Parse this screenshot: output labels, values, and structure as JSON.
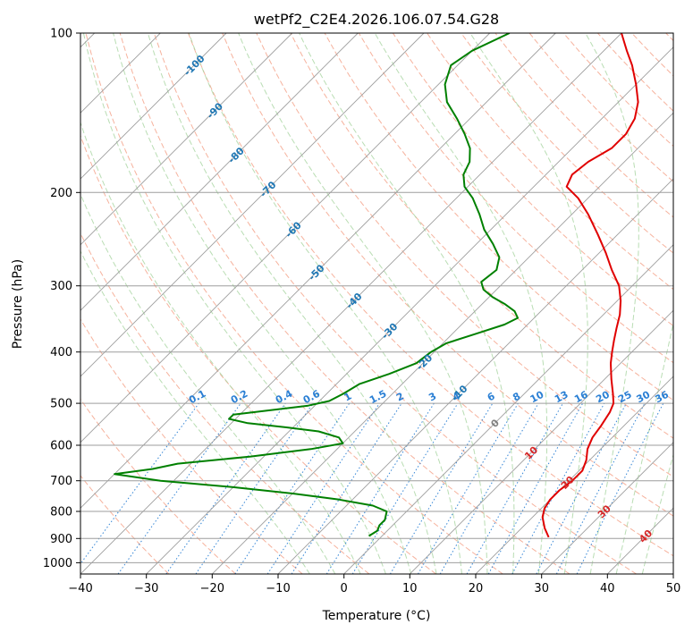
{
  "chart_data": {
    "type": "line",
    "subtype": "skew-T log-P diagram",
    "title": "wetPf2_C2E4.2026.106.07.54.G28",
    "xlabel": "Temperature (°C)",
    "ylabel": "Pressure (hPa)",
    "xlim": [
      -40,
      50
    ],
    "ylim": [
      1050,
      100
    ],
    "x_ticks": [
      -40,
      -30,
      -20,
      -10,
      0,
      10,
      20,
      30,
      40,
      50
    ],
    "x_tick_labels": [
      "−40",
      "−30",
      "−20",
      "−10",
      "0",
      "10",
      "20",
      "30",
      "40",
      "50"
    ],
    "y_ticks": [
      100,
      200,
      300,
      400,
      500,
      600,
      700,
      800,
      900,
      1000
    ],
    "y_tick_labels": [
      "100",
      "200",
      "300",
      "400",
      "500",
      "600",
      "700",
      "800",
      "900",
      "1000"
    ],
    "grid": true,
    "skew_isotherm_labels": [
      {
        "t": -100,
        "p": 115,
        "text": "-100"
      },
      {
        "t": -90,
        "p": 140,
        "text": "-90"
      },
      {
        "t": -80,
        "p": 170,
        "text": "-80"
      },
      {
        "t": -70,
        "p": 197,
        "text": "-70"
      },
      {
        "t": -60,
        "p": 235,
        "text": "-60"
      },
      {
        "t": -50,
        "p": 283,
        "text": "-50"
      },
      {
        "t": -40,
        "p": 320,
        "text": "-40"
      },
      {
        "t": -30,
        "p": 365,
        "text": "-30"
      },
      {
        "t": -20,
        "p": 418,
        "text": "-20"
      },
      {
        "t": -10,
        "p": 478,
        "text": "-10"
      },
      {
        "t": 0,
        "p": 545,
        "text": "0"
      },
      {
        "t": 10,
        "p": 620,
        "text": "10"
      },
      {
        "t": 20,
        "p": 705,
        "text": "20"
      },
      {
        "t": 30,
        "p": 800,
        "text": "30"
      },
      {
        "t": 40,
        "p": 890,
        "text": "40"
      }
    ],
    "mixing_ratio_labels": [
      "0.1",
      "0.2",
      "0.4",
      "0.6",
      "1",
      "1.5",
      "2",
      "3",
      "4",
      "6",
      "8",
      "10",
      "13",
      "16",
      "20",
      "25",
      "30",
      "36"
    ],
    "series": [
      {
        "name": "Temperature",
        "color": "#e00000",
        "points": [
          {
            "p": 895,
            "t": 25.5
          },
          {
            "p": 860,
            "t": 23.5
          },
          {
            "p": 820,
            "t": 21.5
          },
          {
            "p": 790,
            "t": 20.5
          },
          {
            "p": 760,
            "t": 20.0
          },
          {
            "p": 730,
            "t": 20.0
          },
          {
            "p": 700,
            "t": 20.5
          },
          {
            "p": 670,
            "t": 20.5
          },
          {
            "p": 640,
            "t": 19.5
          },
          {
            "p": 610,
            "t": 18.0
          },
          {
            "p": 580,
            "t": 17.0
          },
          {
            "p": 550,
            "t": 16.5
          },
          {
            "p": 520,
            "t": 15.8
          },
          {
            "p": 500,
            "t": 15.0
          },
          {
            "p": 480,
            "t": 13.5
          },
          {
            "p": 450,
            "t": 11.0
          },
          {
            "p": 420,
            "t": 8.5
          },
          {
            "p": 400,
            "t": 7.0
          },
          {
            "p": 380,
            "t": 5.5
          },
          {
            "p": 360,
            "t": 4.0
          },
          {
            "p": 340,
            "t": 2.5
          },
          {
            "p": 320,
            "t": 0.5
          },
          {
            "p": 300,
            "t": -2.0
          },
          {
            "p": 280,
            "t": -5.5
          },
          {
            "p": 260,
            "t": -9.0
          },
          {
            "p": 240,
            "t": -13.0
          },
          {
            "p": 220,
            "t": -17.5
          },
          {
            "p": 205,
            "t": -21.5
          },
          {
            "p": 195,
            "t": -25.0
          },
          {
            "p": 185,
            "t": -26.0
          },
          {
            "p": 175,
            "t": -25.5
          },
          {
            "p": 165,
            "t": -24.0
          },
          {
            "p": 155,
            "t": -24.0
          },
          {
            "p": 145,
            "t": -25.0
          },
          {
            "p": 135,
            "t": -27.0
          },
          {
            "p": 125,
            "t": -30.0
          },
          {
            "p": 115,
            "t": -33.5
          },
          {
            "p": 108,
            "t": -36.5
          },
          {
            "p": 100,
            "t": -40.0
          }
        ]
      },
      {
        "name": "Dew Point",
        "color": "#008000",
        "points": [
          {
            "p": 890,
            "t": -2.0
          },
          {
            "p": 870,
            "t": -1.5
          },
          {
            "p": 850,
            "t": -2.0
          },
          {
            "p": 830,
            "t": -2.0
          },
          {
            "p": 800,
            "t": -3.0
          },
          {
            "p": 780,
            "t": -6.0
          },
          {
            "p": 760,
            "t": -12.0
          },
          {
            "p": 740,
            "t": -20.0
          },
          {
            "p": 720,
            "t": -30.0
          },
          {
            "p": 700,
            "t": -42.0
          },
          {
            "p": 680,
            "t": -50.0
          },
          {
            "p": 665,
            "t": -45.0
          },
          {
            "p": 650,
            "t": -42.0
          },
          {
            "p": 630,
            "t": -32.0
          },
          {
            "p": 610,
            "t": -24.0
          },
          {
            "p": 595,
            "t": -20.0
          },
          {
            "p": 580,
            "t": -21.5
          },
          {
            "p": 565,
            "t": -25.5
          },
          {
            "p": 555,
            "t": -31.0
          },
          {
            "p": 545,
            "t": -37.5
          },
          {
            "p": 535,
            "t": -41.0
          },
          {
            "p": 525,
            "t": -41.0
          },
          {
            "p": 515,
            "t": -36.0
          },
          {
            "p": 505,
            "t": -31.0
          },
          {
            "p": 495,
            "t": -28.5
          },
          {
            "p": 480,
            "t": -27.5
          },
          {
            "p": 460,
            "t": -26.5
          },
          {
            "p": 440,
            "t": -23.5
          },
          {
            "p": 420,
            "t": -21.0
          },
          {
            "p": 400,
            "t": -20.5
          },
          {
            "p": 385,
            "t": -19.5
          },
          {
            "p": 370,
            "t": -16.5
          },
          {
            "p": 355,
            "t": -13.5
          },
          {
            "p": 345,
            "t": -12.5
          },
          {
            "p": 335,
            "t": -14.0
          },
          {
            "p": 325,
            "t": -16.5
          },
          {
            "p": 315,
            "t": -19.5
          },
          {
            "p": 305,
            "t": -22.0
          },
          {
            "p": 295,
            "t": -23.5
          },
          {
            "p": 280,
            "t": -23.0
          },
          {
            "p": 265,
            "t": -24.5
          },
          {
            "p": 250,
            "t": -27.5
          },
          {
            "p": 235,
            "t": -31.0
          },
          {
            "p": 220,
            "t": -34.0
          },
          {
            "p": 205,
            "t": -37.5
          },
          {
            "p": 195,
            "t": -40.5
          },
          {
            "p": 185,
            "t": -42.5
          },
          {
            "p": 175,
            "t": -43.5
          },
          {
            "p": 165,
            "t": -45.5
          },
          {
            "p": 155,
            "t": -48.5
          },
          {
            "p": 145,
            "t": -52.0
          },
          {
            "p": 135,
            "t": -56.0
          },
          {
            "p": 125,
            "t": -59.0
          },
          {
            "p": 115,
            "t": -61.0
          },
          {
            "p": 108,
            "t": -60.0
          },
          {
            "p": 100,
            "t": -57.0
          }
        ]
      }
    ]
  },
  "colors": {
    "temperature": "#e00000",
    "dewpoint": "#008000",
    "isotherm": "#9e9e9e",
    "isobar": "#9e9e9e",
    "dry_adiabat": "#f5a58c",
    "moist_adiabat": "#a8d5a0",
    "mixing_ratio": "#2a7fd4",
    "isotherm_label": "#1f77b4",
    "hot_label": "#d62728",
    "zero_label": "#808080"
  }
}
